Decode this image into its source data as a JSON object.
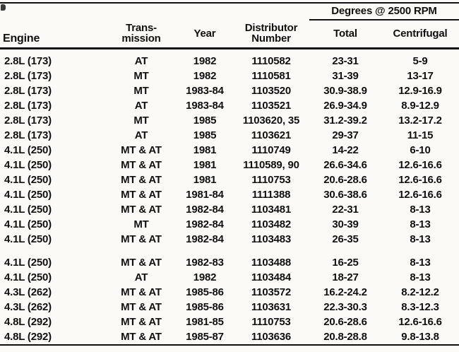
{
  "colors": {
    "ink": "#101010",
    "paper": "#fbfaf7"
  },
  "table": {
    "degrees_header": "Degrees @ 2500 RPM",
    "headers": {
      "engine": "Engine",
      "transmission": "Trans-\nmission",
      "year": "Year",
      "distributor": "Distributor\nNumber",
      "total": "Total",
      "centrifugal": "Centrifugal"
    },
    "gap_row_indices": [
      13
    ],
    "rows": [
      [
        "2.8L (173)",
        "AT",
        "1982",
        "1110582",
        "23-31",
        "5-9"
      ],
      [
        "2.8L (173)",
        "MT",
        "1982",
        "1110581",
        "31-39",
        "13-17"
      ],
      [
        "2.8L (173)",
        "MT",
        "1983-84",
        "1103520",
        "30.9-38.9",
        "12.9-16.9"
      ],
      [
        "2.8L (173)",
        "AT",
        "1983-84",
        "1103521",
        "26.9-34.9",
        "8.9-12.9"
      ],
      [
        "2.8L (173)",
        "MT",
        "1985",
        "1103620, 35",
        "31.2-39.2",
        "13.2-17.2"
      ],
      [
        "2.8L (173)",
        "AT",
        "1985",
        "1103621",
        "29-37",
        "11-15"
      ],
      [
        "4.1L (250)",
        "MT & AT",
        "1981",
        "1110749",
        "14-22",
        "6-10"
      ],
      [
        "4.1L (250)",
        "MT & AT",
        "1981",
        "1110589, 90",
        "26.6-34.6",
        "12.6-16.6"
      ],
      [
        "4.1L (250)",
        "MT & AT",
        "1981",
        "1110753",
        "20.6-28.6",
        "12.6-16.6"
      ],
      [
        "4.1L (250)",
        "MT & AT",
        "1981-84",
        "1111388",
        "30.6-38.6",
        "12.6-16.6"
      ],
      [
        "4.1L (250)",
        "MT & AT",
        "1982-84",
        "1103481",
        "22-31",
        "8-13"
      ],
      [
        "4.1L (250)",
        "MT",
        "1982-84",
        "1103482",
        "30-39",
        "8-13"
      ],
      [
        "4.1L (250)",
        "MT & AT",
        "1982-84",
        "1103483",
        "26-35",
        "8-13"
      ],
      [
        "4.1L (250)",
        "MT & AT",
        "1982-83",
        "1103488",
        "16-25",
        "8-13"
      ],
      [
        "4.1L (250)",
        "AT",
        "1982",
        "1103484",
        "18-27",
        "8-13"
      ],
      [
        "4.3L (262)",
        "MT & AT",
        "1985-86",
        "1103572",
        "16.2-24.2",
        "8.2-12.2"
      ],
      [
        "4.3L (262)",
        "MT & AT",
        "1985-86",
        "1103631",
        "22.3-30.3",
        "8.3-12.3"
      ],
      [
        "4.8L (292)",
        "MT & AT",
        "1981-85",
        "1110753",
        "20.6-28.6",
        "12.6-16.6"
      ],
      [
        "4.8L (292)",
        "MT & AT",
        "1985-87",
        "1103636",
        "20.8-28.8",
        "9.8-13.8"
      ]
    ]
  }
}
